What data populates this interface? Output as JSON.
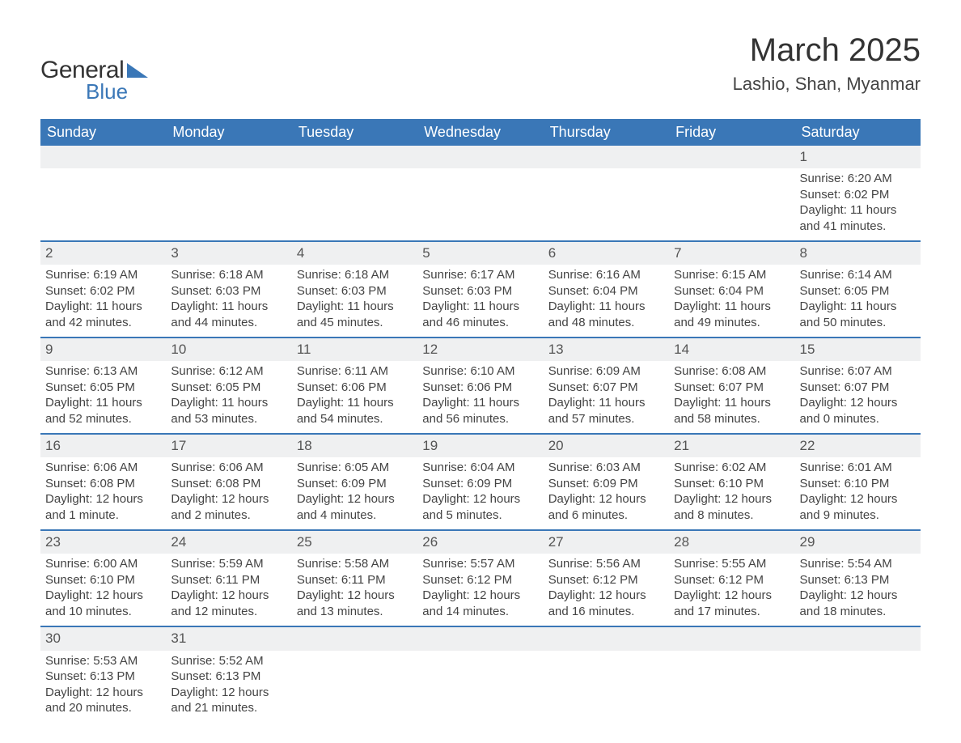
{
  "logo": {
    "text1": "General",
    "text2": "Blue"
  },
  "title": "March 2025",
  "subtitle": "Lashio, Shan, Myanmar",
  "colors": {
    "header_bg": "#3a77b7",
    "header_text": "#ffffff",
    "daynum_bg": "#eff0f1",
    "row_border": "#3a77b7",
    "body_text": "#444444",
    "page_bg": "#ffffff"
  },
  "weekdays": [
    "Sunday",
    "Monday",
    "Tuesday",
    "Wednesday",
    "Thursday",
    "Friday",
    "Saturday"
  ],
  "weeks": [
    [
      null,
      null,
      null,
      null,
      null,
      null,
      {
        "n": "1",
        "sr": "6:20 AM",
        "ss": "6:02 PM",
        "dl": "11 hours and 41 minutes."
      }
    ],
    [
      {
        "n": "2",
        "sr": "6:19 AM",
        "ss": "6:02 PM",
        "dl": "11 hours and 42 minutes."
      },
      {
        "n": "3",
        "sr": "6:18 AM",
        "ss": "6:03 PM",
        "dl": "11 hours and 44 minutes."
      },
      {
        "n": "4",
        "sr": "6:18 AM",
        "ss": "6:03 PM",
        "dl": "11 hours and 45 minutes."
      },
      {
        "n": "5",
        "sr": "6:17 AM",
        "ss": "6:03 PM",
        "dl": "11 hours and 46 minutes."
      },
      {
        "n": "6",
        "sr": "6:16 AM",
        "ss": "6:04 PM",
        "dl": "11 hours and 48 minutes."
      },
      {
        "n": "7",
        "sr": "6:15 AM",
        "ss": "6:04 PM",
        "dl": "11 hours and 49 minutes."
      },
      {
        "n": "8",
        "sr": "6:14 AM",
        "ss": "6:05 PM",
        "dl": "11 hours and 50 minutes."
      }
    ],
    [
      {
        "n": "9",
        "sr": "6:13 AM",
        "ss": "6:05 PM",
        "dl": "11 hours and 52 minutes."
      },
      {
        "n": "10",
        "sr": "6:12 AM",
        "ss": "6:05 PM",
        "dl": "11 hours and 53 minutes."
      },
      {
        "n": "11",
        "sr": "6:11 AM",
        "ss": "6:06 PM",
        "dl": "11 hours and 54 minutes."
      },
      {
        "n": "12",
        "sr": "6:10 AM",
        "ss": "6:06 PM",
        "dl": "11 hours and 56 minutes."
      },
      {
        "n": "13",
        "sr": "6:09 AM",
        "ss": "6:07 PM",
        "dl": "11 hours and 57 minutes."
      },
      {
        "n": "14",
        "sr": "6:08 AM",
        "ss": "6:07 PM",
        "dl": "11 hours and 58 minutes."
      },
      {
        "n": "15",
        "sr": "6:07 AM",
        "ss": "6:07 PM",
        "dl": "12 hours and 0 minutes."
      }
    ],
    [
      {
        "n": "16",
        "sr": "6:06 AM",
        "ss": "6:08 PM",
        "dl": "12 hours and 1 minute."
      },
      {
        "n": "17",
        "sr": "6:06 AM",
        "ss": "6:08 PM",
        "dl": "12 hours and 2 minutes."
      },
      {
        "n": "18",
        "sr": "6:05 AM",
        "ss": "6:09 PM",
        "dl": "12 hours and 4 minutes."
      },
      {
        "n": "19",
        "sr": "6:04 AM",
        "ss": "6:09 PM",
        "dl": "12 hours and 5 minutes."
      },
      {
        "n": "20",
        "sr": "6:03 AM",
        "ss": "6:09 PM",
        "dl": "12 hours and 6 minutes."
      },
      {
        "n": "21",
        "sr": "6:02 AM",
        "ss": "6:10 PM",
        "dl": "12 hours and 8 minutes."
      },
      {
        "n": "22",
        "sr": "6:01 AM",
        "ss": "6:10 PM",
        "dl": "12 hours and 9 minutes."
      }
    ],
    [
      {
        "n": "23",
        "sr": "6:00 AM",
        "ss": "6:10 PM",
        "dl": "12 hours and 10 minutes."
      },
      {
        "n": "24",
        "sr": "5:59 AM",
        "ss": "6:11 PM",
        "dl": "12 hours and 12 minutes."
      },
      {
        "n": "25",
        "sr": "5:58 AM",
        "ss": "6:11 PM",
        "dl": "12 hours and 13 minutes."
      },
      {
        "n": "26",
        "sr": "5:57 AM",
        "ss": "6:12 PM",
        "dl": "12 hours and 14 minutes."
      },
      {
        "n": "27",
        "sr": "5:56 AM",
        "ss": "6:12 PM",
        "dl": "12 hours and 16 minutes."
      },
      {
        "n": "28",
        "sr": "5:55 AM",
        "ss": "6:12 PM",
        "dl": "12 hours and 17 minutes."
      },
      {
        "n": "29",
        "sr": "5:54 AM",
        "ss": "6:13 PM",
        "dl": "12 hours and 18 minutes."
      }
    ],
    [
      {
        "n": "30",
        "sr": "5:53 AM",
        "ss": "6:13 PM",
        "dl": "12 hours and 20 minutes."
      },
      {
        "n": "31",
        "sr": "5:52 AM",
        "ss": "6:13 PM",
        "dl": "12 hours and 21 minutes."
      },
      null,
      null,
      null,
      null,
      null
    ]
  ],
  "labels": {
    "sunrise": "Sunrise:",
    "sunset": "Sunset:",
    "daylight": "Daylight:"
  }
}
